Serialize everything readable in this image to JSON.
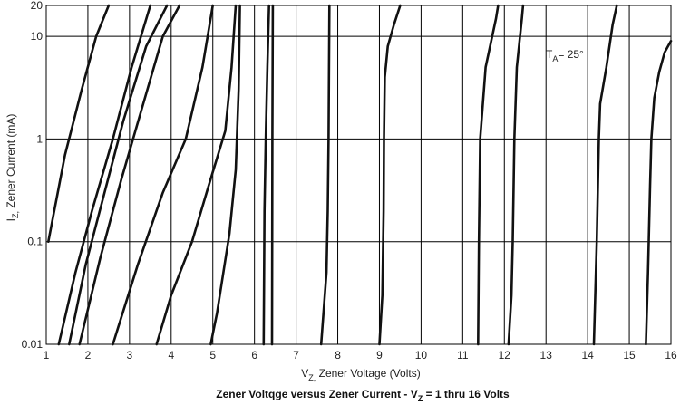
{
  "chart_data": {
    "type": "line",
    "xlabel": "V",
    "xlabel_sub": "Z,",
    "xlabel_rest": "  Zener Voltage (Volts)",
    "ylabel": "I",
    "ylabel_sub": "Z,",
    "ylabel_rest": " Zener Current (mA)",
    "caption_main": "Zener Voltqge versus Zener Current - V",
    "caption_sub": "Z",
    "caption_rest": " = 1 thru 16 Volts",
    "annotation_main": "T",
    "annotation_sub": "A",
    "annotation_rest": "= 25°",
    "xlim": [
      1,
      16
    ],
    "ylim": [
      0.01,
      20
    ],
    "y_scale": "log",
    "x_ticks": [
      1,
      2,
      3,
      4,
      5,
      6,
      7,
      8,
      9,
      10,
      11,
      12,
      13,
      14,
      15,
      16
    ],
    "x_tick_labels": [
      "1",
      "2",
      "3",
      "4",
      "5",
      "6",
      "7",
      "8",
      "9",
      "10",
      "11",
      "12",
      "13",
      "14",
      "15",
      "16"
    ],
    "y_ticks": [
      0.01,
      0.1,
      1,
      10,
      20
    ],
    "y_tick_labels": [
      "0.01",
      "0.1",
      "1",
      "10",
      "20"
    ],
    "grid": true,
    "series": [
      {
        "points": [
          [
            1.05,
            0.1
          ],
          [
            1.45,
            0.7
          ],
          [
            1.85,
            3
          ],
          [
            2.2,
            10
          ],
          [
            2.5,
            20
          ]
        ]
      },
      {
        "points": [
          [
            1.3,
            0.01
          ],
          [
            1.7,
            0.05
          ],
          [
            2.1,
            0.2
          ],
          [
            2.6,
            1
          ],
          [
            3.05,
            5
          ],
          [
            3.5,
            20
          ]
        ]
      },
      {
        "points": [
          [
            1.55,
            0.01
          ],
          [
            1.95,
            0.06
          ],
          [
            2.4,
            0.3
          ],
          [
            2.85,
            1.5
          ],
          [
            3.4,
            8
          ],
          [
            3.9,
            20
          ]
        ]
      },
      {
        "points": [
          [
            1.8,
            0.01
          ],
          [
            2.3,
            0.07
          ],
          [
            2.8,
            0.4
          ],
          [
            3.3,
            2
          ],
          [
            3.8,
            10
          ],
          [
            4.2,
            20
          ]
        ]
      },
      {
        "points": [
          [
            2.6,
            0.01
          ],
          [
            3.2,
            0.06
          ],
          [
            3.8,
            0.3
          ],
          [
            4.35,
            1
          ],
          [
            4.75,
            5
          ],
          [
            5.0,
            20
          ]
        ]
      },
      {
        "points": [
          [
            3.65,
            0.01
          ],
          [
            4.0,
            0.03
          ],
          [
            4.5,
            0.1
          ],
          [
            4.9,
            0.35
          ],
          [
            5.3,
            1.2
          ],
          [
            5.45,
            5
          ],
          [
            5.55,
            20
          ]
        ]
      },
      {
        "points": [
          [
            4.95,
            0.01
          ],
          [
            5.1,
            0.02
          ],
          [
            5.4,
            0.12
          ],
          [
            5.55,
            0.5
          ],
          [
            5.62,
            3
          ],
          [
            5.65,
            20
          ]
        ]
      },
      {
        "points": [
          [
            6.22,
            0.01
          ],
          [
            6.24,
            0.2
          ],
          [
            6.27,
            1
          ],
          [
            6.31,
            5
          ],
          [
            6.35,
            20
          ]
        ]
      },
      {
        "points": [
          [
            6.42,
            0.01
          ],
          [
            6.43,
            1
          ],
          [
            6.44,
            20
          ]
        ]
      },
      {
        "points": [
          [
            7.6,
            0.01
          ],
          [
            7.73,
            0.05
          ],
          [
            7.76,
            0.2
          ],
          [
            7.78,
            1
          ],
          [
            7.8,
            20
          ]
        ]
      },
      {
        "points": [
          [
            9.0,
            0.01
          ],
          [
            9.07,
            0.03
          ],
          [
            9.1,
            0.2
          ],
          [
            9.11,
            1
          ],
          [
            9.13,
            4
          ],
          [
            9.2,
            8
          ],
          [
            9.35,
            13
          ],
          [
            9.5,
            20
          ]
        ]
      },
      {
        "points": [
          [
            11.37,
            0.01
          ],
          [
            11.39,
            0.1
          ],
          [
            11.42,
            1
          ],
          [
            11.55,
            5
          ],
          [
            11.8,
            15
          ],
          [
            11.85,
            20
          ]
        ]
      },
      {
        "points": [
          [
            12.1,
            0.01
          ],
          [
            12.17,
            0.03
          ],
          [
            12.2,
            0.1
          ],
          [
            12.24,
            1
          ],
          [
            12.3,
            5
          ],
          [
            12.42,
            15
          ],
          [
            12.45,
            20
          ]
        ]
      },
      {
        "points": [
          [
            14.15,
            0.01
          ],
          [
            14.22,
            0.1
          ],
          [
            14.27,
            1
          ],
          [
            14.3,
            2.2
          ],
          [
            14.45,
            5
          ],
          [
            14.6,
            13
          ],
          [
            14.7,
            20
          ]
        ]
      },
      {
        "points": [
          [
            15.4,
            0.01
          ],
          [
            15.45,
            0.05
          ],
          [
            15.5,
            0.35
          ],
          [
            15.53,
            1
          ],
          [
            15.6,
            2.5
          ],
          [
            15.72,
            4.5
          ],
          [
            15.85,
            7
          ],
          [
            16.0,
            9
          ]
        ]
      }
    ]
  }
}
